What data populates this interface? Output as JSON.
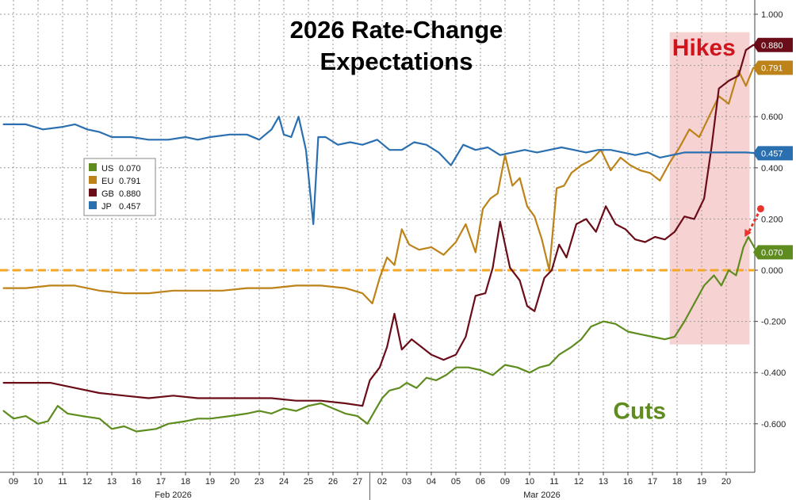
{
  "chart_data": {
    "type": "line",
    "title": "2026 Rate-Change",
    "subtitle": "Expectations",
    "xlabel": "",
    "ylabel": "",
    "ylim": [
      -0.8,
      1.0
    ],
    "yticks": [
      1.0,
      0.8,
      0.6,
      0.4,
      0.2,
      0.0,
      -0.2,
      -0.4,
      -0.6
    ],
    "ytick_labels": [
      "1.000",
      "0.800",
      "0.600",
      "0.400",
      "0.200",
      "0.000",
      "-0.200",
      "-0.400",
      "-0.600"
    ],
    "x_ticks": [
      "09",
      "10",
      "11",
      "12",
      "13",
      "16",
      "17",
      "18",
      "19",
      "20",
      "23",
      "24",
      "25",
      "26",
      "27",
      "02",
      "03",
      "04",
      "05",
      "06",
      "09",
      "10",
      "11",
      "12",
      "13",
      "16",
      "17",
      "18",
      "19",
      "20"
    ],
    "months": [
      {
        "label": "Feb 2026",
        "at_tick": 6.5
      },
      {
        "label": "Mar 2026",
        "at_tick": 21.5
      }
    ],
    "xlim": [
      -0.4,
      31.2
    ],
    "grid": true,
    "legend_position": "left-middle",
    "zero_line": {
      "value": 0.0,
      "color": "#f5a623"
    },
    "shaded_region": {
      "x_from": 26.7,
      "x_to": 29.95,
      "y_from": -0.29,
      "y_to": 0.93,
      "color": "#f4c7c7"
    },
    "annotations": [
      {
        "text": "Hikes",
        "style": "hikes",
        "x": 26.8,
        "y": 0.87
      },
      {
        "text": "Cuts",
        "style": "cuts",
        "x": 24.4,
        "y": -0.55
      }
    ],
    "arrow": {
      "from": [
        30.4,
        0.24
      ],
      "to": [
        29.75,
        0.13
      ],
      "color": "#e8352b"
    },
    "series": [
      {
        "name": "US",
        "value_label": "0.070",
        "color": "#5e8c1f",
        "last": 0.07,
        "points": [
          [
            -0.4,
            -0.55
          ],
          [
            0,
            -0.58
          ],
          [
            0.5,
            -0.57
          ],
          [
            1,
            -0.6
          ],
          [
            1.4,
            -0.59
          ],
          [
            1.8,
            -0.53
          ],
          [
            2.2,
            -0.56
          ],
          [
            2.8,
            -0.57
          ],
          [
            3.5,
            -0.58
          ],
          [
            4,
            -0.62
          ],
          [
            4.5,
            -0.61
          ],
          [
            5,
            -0.63
          ],
          [
            5.8,
            -0.62
          ],
          [
            6.3,
            -0.6
          ],
          [
            7,
            -0.59
          ],
          [
            7.5,
            -0.58
          ],
          [
            8,
            -0.58
          ],
          [
            8.8,
            -0.57
          ],
          [
            9.5,
            -0.56
          ],
          [
            10,
            -0.55
          ],
          [
            10.5,
            -0.56
          ],
          [
            11,
            -0.54
          ],
          [
            11.5,
            -0.55
          ],
          [
            12,
            -0.53
          ],
          [
            12.5,
            -0.52
          ],
          [
            13,
            -0.54
          ],
          [
            13.5,
            -0.56
          ],
          [
            14,
            -0.57
          ],
          [
            14.4,
            -0.6
          ],
          [
            14.7,
            -0.55
          ],
          [
            15,
            -0.5
          ],
          [
            15.3,
            -0.47
          ],
          [
            15.7,
            -0.46
          ],
          [
            16,
            -0.44
          ],
          [
            16.4,
            -0.46
          ],
          [
            16.8,
            -0.42
          ],
          [
            17.2,
            -0.43
          ],
          [
            17.6,
            -0.41
          ],
          [
            18,
            -0.38
          ],
          [
            18.5,
            -0.38
          ],
          [
            19,
            -0.39
          ],
          [
            19.5,
            -0.41
          ],
          [
            20,
            -0.37
          ],
          [
            20.5,
            -0.38
          ],
          [
            21,
            -0.4
          ],
          [
            21.4,
            -0.38
          ],
          [
            21.8,
            -0.37
          ],
          [
            22.2,
            -0.33
          ],
          [
            22.7,
            -0.3
          ],
          [
            23.1,
            -0.27
          ],
          [
            23.5,
            -0.22
          ],
          [
            24,
            -0.2
          ],
          [
            24.5,
            -0.21
          ],
          [
            25,
            -0.24
          ],
          [
            25.5,
            -0.25
          ],
          [
            26,
            -0.26
          ],
          [
            26.5,
            -0.27
          ],
          [
            26.9,
            -0.26
          ],
          [
            27.3,
            -0.2
          ],
          [
            27.7,
            -0.13
          ],
          [
            28.1,
            -0.06
          ],
          [
            28.5,
            -0.02
          ],
          [
            28.8,
            -0.06
          ],
          [
            29.1,
            0.0
          ],
          [
            29.4,
            -0.02
          ],
          [
            29.7,
            0.09
          ],
          [
            29.9,
            0.13
          ],
          [
            30.2,
            0.08
          ],
          [
            30.3,
            0.07
          ]
        ]
      },
      {
        "name": "EU",
        "value_label": "0.791",
        "color": "#bd8218",
        "last": 0.791,
        "points": [
          [
            -0.4,
            -0.07
          ],
          [
            0.5,
            -0.07
          ],
          [
            1.5,
            -0.06
          ],
          [
            2.5,
            -0.06
          ],
          [
            3.5,
            -0.08
          ],
          [
            4.5,
            -0.09
          ],
          [
            5.5,
            -0.09
          ],
          [
            6.5,
            -0.08
          ],
          [
            7.5,
            -0.08
          ],
          [
            8.5,
            -0.08
          ],
          [
            9.5,
            -0.07
          ],
          [
            10.5,
            -0.07
          ],
          [
            11.5,
            -0.06
          ],
          [
            12.5,
            -0.06
          ],
          [
            13.5,
            -0.07
          ],
          [
            14.2,
            -0.09
          ],
          [
            14.6,
            -0.13
          ],
          [
            14.9,
            -0.03
          ],
          [
            15.2,
            0.05
          ],
          [
            15.5,
            0.02
          ],
          [
            15.8,
            0.16
          ],
          [
            16.1,
            0.1
          ],
          [
            16.5,
            0.08
          ],
          [
            17,
            0.09
          ],
          [
            17.5,
            0.06
          ],
          [
            18,
            0.11
          ],
          [
            18.4,
            0.18
          ],
          [
            18.8,
            0.07
          ],
          [
            19.1,
            0.24
          ],
          [
            19.4,
            0.28
          ],
          [
            19.7,
            0.3
          ],
          [
            20,
            0.45
          ],
          [
            20.3,
            0.33
          ],
          [
            20.6,
            0.36
          ],
          [
            20.9,
            0.25
          ],
          [
            21.2,
            0.21
          ],
          [
            21.5,
            0.12
          ],
          [
            21.8,
            0.0
          ],
          [
            22.1,
            0.32
          ],
          [
            22.4,
            0.33
          ],
          [
            22.7,
            0.38
          ],
          [
            23.1,
            0.41
          ],
          [
            23.5,
            0.43
          ],
          [
            23.9,
            0.47
          ],
          [
            24.3,
            0.39
          ],
          [
            24.7,
            0.44
          ],
          [
            25.1,
            0.41
          ],
          [
            25.5,
            0.39
          ],
          [
            25.9,
            0.38
          ],
          [
            26.3,
            0.35
          ],
          [
            26.7,
            0.42
          ],
          [
            27.1,
            0.48
          ],
          [
            27.5,
            0.55
          ],
          [
            27.9,
            0.52
          ],
          [
            28.3,
            0.6
          ],
          [
            28.7,
            0.68
          ],
          [
            29.1,
            0.65
          ],
          [
            29.5,
            0.78
          ],
          [
            29.8,
            0.72
          ],
          [
            30.1,
            0.79
          ],
          [
            30.3,
            0.791
          ]
        ]
      },
      {
        "name": "GB",
        "value_label": "0.880",
        "color": "#6b0d18",
        "last": 0.88,
        "points": [
          [
            -0.4,
            -0.44
          ],
          [
            0.5,
            -0.44
          ],
          [
            1.5,
            -0.44
          ],
          [
            2.5,
            -0.46
          ],
          [
            3.5,
            -0.48
          ],
          [
            4.5,
            -0.49
          ],
          [
            5.5,
            -0.5
          ],
          [
            6.5,
            -0.49
          ],
          [
            7.5,
            -0.5
          ],
          [
            8.5,
            -0.5
          ],
          [
            9.5,
            -0.5
          ],
          [
            10.5,
            -0.5
          ],
          [
            11.5,
            -0.51
          ],
          [
            12.5,
            -0.51
          ],
          [
            13.5,
            -0.52
          ],
          [
            14.2,
            -0.53
          ],
          [
            14.5,
            -0.43
          ],
          [
            14.9,
            -0.38
          ],
          [
            15.2,
            -0.3
          ],
          [
            15.5,
            -0.17
          ],
          [
            15.8,
            -0.31
          ],
          [
            16.2,
            -0.27
          ],
          [
            16.6,
            -0.3
          ],
          [
            17,
            -0.33
          ],
          [
            17.5,
            -0.35
          ],
          [
            18,
            -0.33
          ],
          [
            18.4,
            -0.26
          ],
          [
            18.8,
            -0.1
          ],
          [
            19.2,
            -0.09
          ],
          [
            19.5,
            0.01
          ],
          [
            19.8,
            0.19
          ],
          [
            20.2,
            0.01
          ],
          [
            20.6,
            -0.04
          ],
          [
            20.9,
            -0.14
          ],
          [
            21.2,
            -0.16
          ],
          [
            21.6,
            -0.03
          ],
          [
            21.9,
            0.0
          ],
          [
            22.2,
            0.1
          ],
          [
            22.5,
            0.05
          ],
          [
            22.9,
            0.18
          ],
          [
            23.3,
            0.2
          ],
          [
            23.7,
            0.15
          ],
          [
            24.1,
            0.25
          ],
          [
            24.5,
            0.18
          ],
          [
            24.9,
            0.16
          ],
          [
            25.3,
            0.12
          ],
          [
            25.7,
            0.11
          ],
          [
            26.1,
            0.13
          ],
          [
            26.5,
            0.12
          ],
          [
            26.9,
            0.15
          ],
          [
            27.3,
            0.21
          ],
          [
            27.7,
            0.2
          ],
          [
            28.1,
            0.28
          ],
          [
            28.4,
            0.48
          ],
          [
            28.7,
            0.71
          ],
          [
            29.1,
            0.74
          ],
          [
            29.5,
            0.76
          ],
          [
            29.8,
            0.86
          ],
          [
            30.1,
            0.88
          ],
          [
            30.3,
            0.88
          ]
        ]
      },
      {
        "name": "JP",
        "value_label": "0.457",
        "color": "#2a6fb0",
        "last": 0.457,
        "points": [
          [
            -0.4,
            0.57
          ],
          [
            0.5,
            0.57
          ],
          [
            1.2,
            0.55
          ],
          [
            2,
            0.56
          ],
          [
            2.5,
            0.57
          ],
          [
            3,
            0.55
          ],
          [
            3.5,
            0.54
          ],
          [
            4,
            0.52
          ],
          [
            4.8,
            0.52
          ],
          [
            5.5,
            0.51
          ],
          [
            6.3,
            0.51
          ],
          [
            7,
            0.52
          ],
          [
            7.5,
            0.51
          ],
          [
            8,
            0.52
          ],
          [
            8.8,
            0.53
          ],
          [
            9.5,
            0.53
          ],
          [
            10,
            0.51
          ],
          [
            10.5,
            0.55
          ],
          [
            10.8,
            0.6
          ],
          [
            11,
            0.53
          ],
          [
            11.3,
            0.52
          ],
          [
            11.6,
            0.6
          ],
          [
            11.9,
            0.47
          ],
          [
            12.2,
            0.18
          ],
          [
            12.4,
            0.52
          ],
          [
            12.7,
            0.52
          ],
          [
            13.2,
            0.49
          ],
          [
            13.7,
            0.5
          ],
          [
            14.2,
            0.49
          ],
          [
            14.8,
            0.51
          ],
          [
            15.3,
            0.47
          ],
          [
            15.8,
            0.47
          ],
          [
            16.3,
            0.5
          ],
          [
            16.8,
            0.49
          ],
          [
            17.3,
            0.46
          ],
          [
            17.8,
            0.41
          ],
          [
            18.3,
            0.49
          ],
          [
            18.8,
            0.47
          ],
          [
            19.3,
            0.48
          ],
          [
            19.8,
            0.45
          ],
          [
            20.3,
            0.46
          ],
          [
            20.8,
            0.47
          ],
          [
            21.3,
            0.46
          ],
          [
            21.8,
            0.47
          ],
          [
            22.3,
            0.48
          ],
          [
            22.8,
            0.47
          ],
          [
            23.3,
            0.46
          ],
          [
            23.8,
            0.47
          ],
          [
            24.3,
            0.47
          ],
          [
            24.8,
            0.46
          ],
          [
            25.3,
            0.45
          ],
          [
            25.8,
            0.46
          ],
          [
            26.3,
            0.44
          ],
          [
            26.8,
            0.45
          ],
          [
            27.3,
            0.46
          ],
          [
            27.8,
            0.46
          ],
          [
            28.3,
            0.46
          ],
          [
            28.8,
            0.46
          ],
          [
            29.3,
            0.46
          ],
          [
            29.8,
            0.46
          ],
          [
            30.3,
            0.457
          ]
        ]
      }
    ]
  },
  "legend": {
    "items": [
      {
        "code": "US",
        "value": "0.070",
        "color": "#5e8c1f"
      },
      {
        "code": "EU",
        "value": "0.791",
        "color": "#bd8218"
      },
      {
        "code": "GB",
        "value": "0.880",
        "color": "#6b0d18"
      },
      {
        "code": "JP",
        "value": "0.457",
        "color": "#2a6fb0"
      }
    ]
  },
  "value_tags": [
    {
      "value": "0.880",
      "color": "#6b0d18",
      "y": 0.88
    },
    {
      "value": "0.791",
      "color": "#bd8218",
      "y": 0.791
    },
    {
      "value": "0.457",
      "color": "#2a6fb0",
      "y": 0.457
    },
    {
      "value": "0.070",
      "color": "#5e8c1f",
      "y": 0.07
    }
  ]
}
